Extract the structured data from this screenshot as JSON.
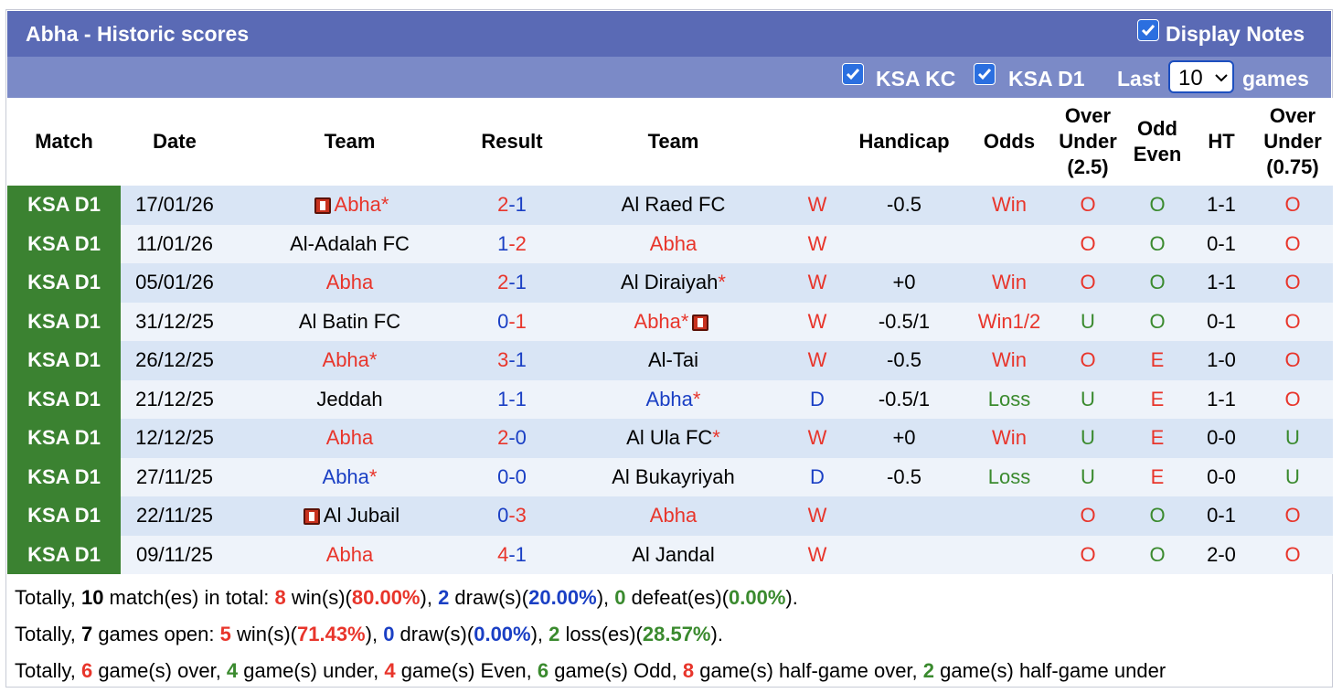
{
  "header": {
    "title": "Abha - Historic scores",
    "display_notes": "Display Notes",
    "filter_1": "KSA KC",
    "filter_2": "KSA D1",
    "last_label": "Last",
    "last_value": "10",
    "games_label": "games"
  },
  "table": {
    "headers": [
      [
        "Match"
      ],
      [
        "Date"
      ],
      [
        "Team"
      ],
      [
        "Result"
      ],
      [
        "Team"
      ],
      [
        "Handicap"
      ],
      [
        "Odds"
      ],
      [
        "Over",
        "Under",
        "(2.5)"
      ],
      [
        "Odd",
        "Even"
      ],
      [
        "HT"
      ],
      [
        "Over",
        "Under",
        "(0.75)"
      ]
    ],
    "rows": [
      {
        "match": "KSA D1",
        "date": "17/01/26",
        "home": {
          "name": "Abha",
          "color": "#e8352b",
          "star": "*",
          "card": "before"
        },
        "score": [
          {
            "text": "2",
            "color": "#e8352b"
          },
          {
            "text": "-1",
            "color": "#1a3fc4"
          }
        ],
        "away": {
          "name": "Al Raed FC",
          "color": "#000000"
        },
        "outcome": {
          "text": "W",
          "color": "#e8352b"
        },
        "handicap": "-0.5",
        "odds": {
          "text": "Win",
          "color": "#e8352b"
        },
        "ou": {
          "text": "O",
          "color": "#e8352b"
        },
        "oe": {
          "text": "O",
          "color": "#3a8a2e"
        },
        "ht": "1-1",
        "ou075": {
          "text": "O",
          "color": "#e8352b"
        }
      },
      {
        "match": "KSA D1",
        "date": "11/01/26",
        "home": {
          "name": "Al-Adalah FC",
          "color": "#000000"
        },
        "score": [
          {
            "text": "1",
            "color": "#1a3fc4"
          },
          {
            "text": "-2",
            "color": "#e8352b"
          }
        ],
        "away": {
          "name": "Abha",
          "color": "#e8352b"
        },
        "outcome": {
          "text": "W",
          "color": "#e8352b"
        },
        "ou": {
          "text": "O",
          "color": "#e8352b"
        },
        "oe": {
          "text": "O",
          "color": "#3a8a2e"
        },
        "ht": "0-1",
        "ou075": {
          "text": "O",
          "color": "#e8352b"
        }
      },
      {
        "match": "KSA D1",
        "date": "05/01/26",
        "home": {
          "name": "Abha",
          "color": "#e8352b"
        },
        "score": [
          {
            "text": "2",
            "color": "#e8352b"
          },
          {
            "text": "-1",
            "color": "#1a3fc4"
          }
        ],
        "away": {
          "name": "Al Diraiyah",
          "color": "#000000",
          "star": "*"
        },
        "outcome": {
          "text": "W",
          "color": "#e8352b"
        },
        "handicap": "+0",
        "odds": {
          "text": "Win",
          "color": "#e8352b"
        },
        "ou": {
          "text": "O",
          "color": "#e8352b"
        },
        "oe": {
          "text": "O",
          "color": "#3a8a2e"
        },
        "ht": "1-1",
        "ou075": {
          "text": "O",
          "color": "#e8352b"
        }
      },
      {
        "match": "KSA D1",
        "date": "31/12/25",
        "home": {
          "name": "Al Batin FC",
          "color": "#000000"
        },
        "score": [
          {
            "text": "0",
            "color": "#1a3fc4"
          },
          {
            "text": "-1",
            "color": "#e8352b"
          }
        ],
        "away": {
          "name": "Abha",
          "color": "#e8352b",
          "star": "*",
          "card": "after"
        },
        "outcome": {
          "text": "W",
          "color": "#e8352b"
        },
        "handicap": "-0.5/1",
        "odds": {
          "text": "Win1/2",
          "color": "#e8352b"
        },
        "ou": {
          "text": "U",
          "color": "#3a8a2e"
        },
        "oe": {
          "text": "O",
          "color": "#3a8a2e"
        },
        "ht": "0-1",
        "ou075": {
          "text": "O",
          "color": "#e8352b"
        }
      },
      {
        "match": "KSA D1",
        "date": "26/12/25",
        "home": {
          "name": "Abha",
          "color": "#e8352b",
          "star": "*"
        },
        "score": [
          {
            "text": "3",
            "color": "#e8352b"
          },
          {
            "text": "-1",
            "color": "#1a3fc4"
          }
        ],
        "away": {
          "name": "Al-Tai",
          "color": "#000000"
        },
        "outcome": {
          "text": "W",
          "color": "#e8352b"
        },
        "handicap": "-0.5",
        "odds": {
          "text": "Win",
          "color": "#e8352b"
        },
        "ou": {
          "text": "O",
          "color": "#e8352b"
        },
        "oe": {
          "text": "E",
          "color": "#e8352b"
        },
        "ht": "1-0",
        "ou075": {
          "text": "O",
          "color": "#e8352b"
        }
      },
      {
        "match": "KSA D1",
        "date": "21/12/25",
        "home": {
          "name": "Jeddah",
          "color": "#000000"
        },
        "score": [
          {
            "text": "1",
            "color": "#1a3fc4"
          },
          {
            "text": "-1",
            "color": "#1a3fc4"
          }
        ],
        "away": {
          "name": "Abha",
          "color": "#1a3fc4",
          "star": "*"
        },
        "outcome": {
          "text": "D",
          "color": "#1a3fc4"
        },
        "handicap": "-0.5/1",
        "odds": {
          "text": "Loss",
          "color": "#3a8a2e"
        },
        "ou": {
          "text": "U",
          "color": "#3a8a2e"
        },
        "oe": {
          "text": "E",
          "color": "#e8352b"
        },
        "ht": "1-1",
        "ou075": {
          "text": "O",
          "color": "#e8352b"
        }
      },
      {
        "match": "KSA D1",
        "date": "12/12/25",
        "home": {
          "name": "Abha",
          "color": "#e8352b"
        },
        "score": [
          {
            "text": "2",
            "color": "#e8352b"
          },
          {
            "text": "-0",
            "color": "#1a3fc4"
          }
        ],
        "away": {
          "name": "Al Ula FC",
          "color": "#000000",
          "star": "*"
        },
        "outcome": {
          "text": "W",
          "color": "#e8352b"
        },
        "handicap": "+0",
        "odds": {
          "text": "Win",
          "color": "#e8352b"
        },
        "ou": {
          "text": "U",
          "color": "#3a8a2e"
        },
        "oe": {
          "text": "E",
          "color": "#e8352b"
        },
        "ht": "0-0",
        "ou075": {
          "text": "U",
          "color": "#3a8a2e"
        }
      },
      {
        "match": "KSA D1",
        "date": "27/11/25",
        "home": {
          "name": "Abha",
          "color": "#1a3fc4",
          "star": "*"
        },
        "score": [
          {
            "text": "0",
            "color": "#1a3fc4"
          },
          {
            "text": "-0",
            "color": "#1a3fc4"
          }
        ],
        "away": {
          "name": "Al Bukayriyah",
          "color": "#000000"
        },
        "outcome": {
          "text": "D",
          "color": "#1a3fc4"
        },
        "handicap": "-0.5",
        "odds": {
          "text": "Loss",
          "color": "#3a8a2e"
        },
        "ou": {
          "text": "U",
          "color": "#3a8a2e"
        },
        "oe": {
          "text": "E",
          "color": "#e8352b"
        },
        "ht": "0-0",
        "ou075": {
          "text": "U",
          "color": "#3a8a2e"
        }
      },
      {
        "match": "KSA D1",
        "date": "22/11/25",
        "home": {
          "name": "Al Jubail",
          "color": "#000000",
          "card": "before"
        },
        "score": [
          {
            "text": "0",
            "color": "#1a3fc4"
          },
          {
            "text": "-3",
            "color": "#e8352b"
          }
        ],
        "away": {
          "name": "Abha",
          "color": "#e8352b"
        },
        "outcome": {
          "text": "W",
          "color": "#e8352b"
        },
        "ou": {
          "text": "O",
          "color": "#e8352b"
        },
        "oe": {
          "text": "O",
          "color": "#3a8a2e"
        },
        "ht": "0-1",
        "ou075": {
          "text": "O",
          "color": "#e8352b"
        }
      },
      {
        "match": "KSA D1",
        "date": "09/11/25",
        "home": {
          "name": "Abha",
          "color": "#e8352b"
        },
        "score": [
          {
            "text": "4",
            "color": "#e8352b"
          },
          {
            "text": "-1",
            "color": "#1a3fc4"
          }
        ],
        "away": {
          "name": "Al Jandal",
          "color": "#000000"
        },
        "outcome": {
          "text": "W",
          "color": "#e8352b"
        },
        "ou": {
          "text": "O",
          "color": "#e8352b"
        },
        "oe": {
          "text": "O",
          "color": "#3a8a2e"
        },
        "ht": "2-0",
        "ou075": {
          "text": "O",
          "color": "#e8352b"
        }
      }
    ]
  },
  "summary": [
    [
      {
        "text": "Totally, "
      },
      {
        "text": "10",
        "bold": true
      },
      {
        "text": " match(es) in total: "
      },
      {
        "text": "8",
        "bold": true,
        "color": "#e8352b"
      },
      {
        "text": " win(s)("
      },
      {
        "text": "80.00%",
        "bold": true,
        "color": "#e8352b"
      },
      {
        "text": "), "
      },
      {
        "text": "2",
        "bold": true,
        "color": "#1a3fc4"
      },
      {
        "text": " draw(s)("
      },
      {
        "text": "20.00%",
        "bold": true,
        "color": "#1a3fc4"
      },
      {
        "text": "), "
      },
      {
        "text": "0",
        "bold": true,
        "color": "#3a8a2e"
      },
      {
        "text": " defeat(es)("
      },
      {
        "text": "0.00%",
        "bold": true,
        "color": "#3a8a2e"
      },
      {
        "text": ")."
      }
    ],
    [
      {
        "text": "Totally, "
      },
      {
        "text": "7",
        "bold": true
      },
      {
        "text": " games open: "
      },
      {
        "text": "5",
        "bold": true,
        "color": "#e8352b"
      },
      {
        "text": " win(s)("
      },
      {
        "text": "71.43%",
        "bold": true,
        "color": "#e8352b"
      },
      {
        "text": "), "
      },
      {
        "text": "0",
        "bold": true,
        "color": "#1a3fc4"
      },
      {
        "text": " draw(s)("
      },
      {
        "text": "0.00%",
        "bold": true,
        "color": "#1a3fc4"
      },
      {
        "text": "), "
      },
      {
        "text": "2",
        "bold": true,
        "color": "#3a8a2e"
      },
      {
        "text": " loss(es)("
      },
      {
        "text": "28.57%",
        "bold": true,
        "color": "#3a8a2e"
      },
      {
        "text": ")."
      }
    ],
    [
      {
        "text": "Totally, "
      },
      {
        "text": "6",
        "bold": true,
        "color": "#e8352b"
      },
      {
        "text": " game(s) over, "
      },
      {
        "text": "4",
        "bold": true,
        "color": "#3a8a2e"
      },
      {
        "text": " game(s) under, "
      },
      {
        "text": "4",
        "bold": true,
        "color": "#e8352b"
      },
      {
        "text": " game(s) Even, "
      },
      {
        "text": "6",
        "bold": true,
        "color": "#3a8a2e"
      },
      {
        "text": " game(s) Odd, "
      },
      {
        "text": "8",
        "bold": true,
        "color": "#e8352b"
      },
      {
        "text": " game(s) half-game over, "
      },
      {
        "text": "2",
        "bold": true,
        "color": "#3a8a2e"
      },
      {
        "text": " game(s) half-game under"
      }
    ]
  ]
}
